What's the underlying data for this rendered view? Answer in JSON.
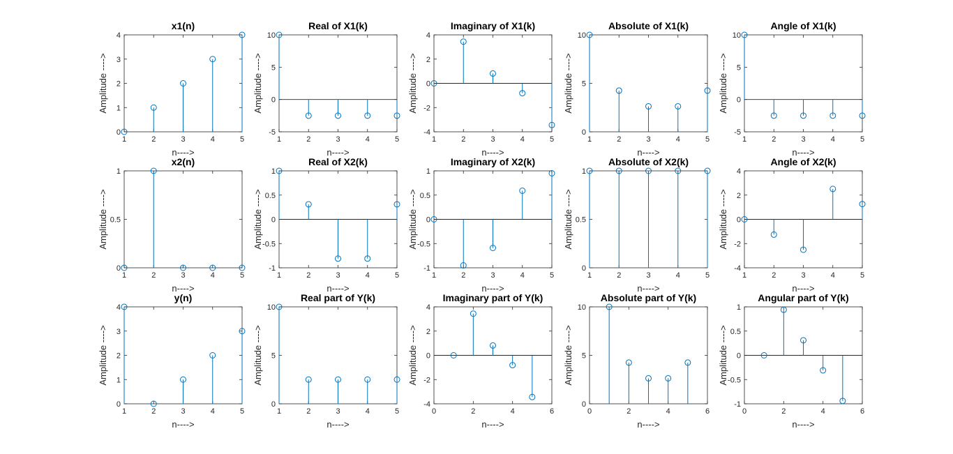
{
  "figure": {
    "stem_color": "#0072BD",
    "axis_color": "#262626"
  },
  "chart_data": [
    {
      "type": "stem",
      "title": "x1(n)",
      "xlabel": "n---->",
      "ylabel": "Amplitude ---->",
      "x": [
        1,
        2,
        3,
        4,
        5
      ],
      "values": [
        0,
        1,
        2,
        3,
        4
      ],
      "xlim": [
        1,
        5
      ],
      "ylim": [
        0,
        4
      ],
      "xticks": [
        1,
        2,
        3,
        4,
        5
      ],
      "yticks": [
        0,
        1,
        2,
        3,
        4
      ],
      "baseline": false
    },
    {
      "type": "stem",
      "title": "Real of X1(k)",
      "xlabel": "n---->",
      "ylabel": "Amplitude ---->",
      "x": [
        1,
        2,
        3,
        4,
        5
      ],
      "values": [
        10,
        -2.5,
        -2.5,
        -2.5,
        -2.5
      ],
      "xlim": [
        1,
        5
      ],
      "ylim": [
        -5,
        10
      ],
      "xticks": [
        1,
        2,
        3,
        4,
        5
      ],
      "yticks": [
        -5,
        0,
        5,
        10
      ],
      "baseline": true
    },
    {
      "type": "stem",
      "title": "Imaginary of X1(k)",
      "xlabel": "n---->",
      "ylabel": "Amplitude ---->",
      "x": [
        1,
        2,
        3,
        4,
        5
      ],
      "values": [
        0,
        3.44,
        0.81,
        -0.81,
        -3.44
      ],
      "xlim": [
        1,
        5
      ],
      "ylim": [
        -4,
        4
      ],
      "xticks": [
        1,
        2,
        3,
        4,
        5
      ],
      "yticks": [
        -4,
        -2,
        0,
        2,
        4
      ],
      "baseline": true
    },
    {
      "type": "stem",
      "title": "Absolute of X1(k)",
      "xlabel": "n---->",
      "ylabel": "Amplitude ---->",
      "x": [
        1,
        2,
        3,
        4,
        5
      ],
      "values": [
        10,
        4.25,
        2.63,
        2.63,
        4.25
      ],
      "xlim": [
        1,
        5
      ],
      "ylim": [
        0,
        10
      ],
      "xticks": [
        1,
        2,
        3,
        4,
        5
      ],
      "yticks": [
        0,
        5,
        10
      ],
      "baseline": false
    },
    {
      "type": "stem",
      "title": "Angle of X1(k)",
      "xlabel": "n---->",
      "ylabel": "Amplitude ---->",
      "x": [
        1,
        2,
        3,
        4,
        5
      ],
      "values": [
        10,
        -2.5,
        -2.5,
        -2.5,
        -2.5
      ],
      "xlim": [
        1,
        5
      ],
      "ylim": [
        -5,
        10
      ],
      "xticks": [
        1,
        2,
        3,
        4,
        5
      ],
      "yticks": [
        -5,
        0,
        5,
        10
      ],
      "baseline": true
    },
    {
      "type": "stem",
      "title": "x2(n)",
      "xlabel": "n---->",
      "ylabel": "Amplitude ---->",
      "x": [
        1,
        2,
        3,
        4,
        5
      ],
      "values": [
        0,
        1,
        0,
        0,
        0
      ],
      "xlim": [
        1,
        5
      ],
      "ylim": [
        0,
        1
      ],
      "xticks": [
        1,
        2,
        3,
        4,
        5
      ],
      "yticks": [
        0,
        0.5,
        1
      ],
      "baseline": false
    },
    {
      "type": "stem",
      "title": "Real of X2(k)",
      "xlabel": "n---->",
      "ylabel": "Amplitude ---->",
      "x": [
        1,
        2,
        3,
        4,
        5
      ],
      "values": [
        1,
        0.31,
        -0.81,
        -0.81,
        0.31
      ],
      "xlim": [
        1,
        5
      ],
      "ylim": [
        -1,
        1
      ],
      "xticks": [
        1,
        2,
        3,
        4,
        5
      ],
      "yticks": [
        -1,
        -0.5,
        0,
        0.5,
        1
      ],
      "baseline": true
    },
    {
      "type": "stem",
      "title": "Imaginary of X2(k)",
      "xlabel": "n---->",
      "ylabel": "Amplitude ---->",
      "x": [
        1,
        2,
        3,
        4,
        5
      ],
      "values": [
        0,
        -0.95,
        -0.59,
        0.59,
        0.95
      ],
      "xlim": [
        1,
        5
      ],
      "ylim": [
        -1,
        1
      ],
      "xticks": [
        1,
        2,
        3,
        4,
        5
      ],
      "yticks": [
        -1,
        -0.5,
        0,
        0.5,
        1
      ],
      "baseline": true
    },
    {
      "type": "stem",
      "title": "Absolute of X2(k)",
      "xlabel": "n---->",
      "ylabel": "Amplitude ---->",
      "x": [
        1,
        2,
        3,
        4,
        5
      ],
      "values": [
        1,
        1,
        1,
        1,
        1
      ],
      "xlim": [
        1,
        5
      ],
      "ylim": [
        0,
        1
      ],
      "xticks": [
        1,
        2,
        3,
        4,
        5
      ],
      "yticks": [
        0,
        0.5,
        1
      ],
      "baseline": false
    },
    {
      "type": "stem",
      "title": "Angle of X2(k)",
      "xlabel": "n---->",
      "ylabel": "Amplitude ---->",
      "x": [
        1,
        2,
        3,
        4,
        5
      ],
      "values": [
        0,
        -1.26,
        -2.51,
        2.51,
        1.26
      ],
      "xlim": [
        1,
        5
      ],
      "ylim": [
        -4,
        4
      ],
      "xticks": [
        1,
        2,
        3,
        4,
        5
      ],
      "yticks": [
        -4,
        -2,
        0,
        2,
        4
      ],
      "baseline": true
    },
    {
      "type": "stem",
      "title": "y(n)",
      "xlabel": "n---->",
      "ylabel": "Amplitude ---->",
      "x": [
        1,
        2,
        3,
        4,
        5
      ],
      "values": [
        4,
        0,
        1,
        2,
        3
      ],
      "xlim": [
        1,
        5
      ],
      "ylim": [
        0,
        4
      ],
      "xticks": [
        1,
        2,
        3,
        4,
        5
      ],
      "yticks": [
        0,
        1,
        2,
        3,
        4
      ],
      "baseline": false
    },
    {
      "type": "stem",
      "title": "Real part of Y(k)",
      "xlabel": "n---->",
      "ylabel": "Amplitude ---->",
      "x": [
        1,
        2,
        3,
        4,
        5
      ],
      "values": [
        10,
        2.5,
        2.5,
        2.5,
        2.5
      ],
      "xlim": [
        1,
        5
      ],
      "ylim": [
        0,
        10
      ],
      "xticks": [
        1,
        2,
        3,
        4,
        5
      ],
      "yticks": [
        0,
        5,
        10
      ],
      "baseline": false
    },
    {
      "type": "stem",
      "title": "Imaginary part of Y(k)",
      "xlabel": "n---->",
      "ylabel": "Amplitude ---->",
      "x": [
        1,
        2,
        3,
        4,
        5
      ],
      "values": [
        0,
        3.44,
        0.81,
        -0.81,
        -3.44
      ],
      "xlim": [
        0,
        6
      ],
      "ylim": [
        -4,
        4
      ],
      "xticks": [
        0,
        2,
        4,
        6
      ],
      "yticks": [
        -4,
        -2,
        0,
        2,
        4
      ],
      "baseline": true
    },
    {
      "type": "stem",
      "title": "Absolute part of Y(k)",
      "xlabel": "n---->",
      "ylabel": "Amplitude ---->",
      "x": [
        1,
        2,
        3,
        4,
        5
      ],
      "values": [
        10,
        4.25,
        2.63,
        2.63,
        4.25
      ],
      "xlim": [
        0,
        6
      ],
      "ylim": [
        0,
        10
      ],
      "xticks": [
        0,
        2,
        4,
        6
      ],
      "yticks": [
        0,
        5,
        10
      ],
      "baseline": false
    },
    {
      "type": "stem",
      "title": "Angular part of Y(k)",
      "xlabel": "n---->",
      "ylabel": "Amplitude ---->",
      "x": [
        1,
        2,
        3,
        4,
        5
      ],
      "values": [
        0,
        0.94,
        0.31,
        -0.31,
        -0.94
      ],
      "xlim": [
        0,
        6
      ],
      "ylim": [
        -1,
        1
      ],
      "xticks": [
        0,
        2,
        4,
        6
      ],
      "yticks": [
        -1,
        -0.5,
        0,
        0.5,
        1
      ],
      "baseline": true
    }
  ]
}
